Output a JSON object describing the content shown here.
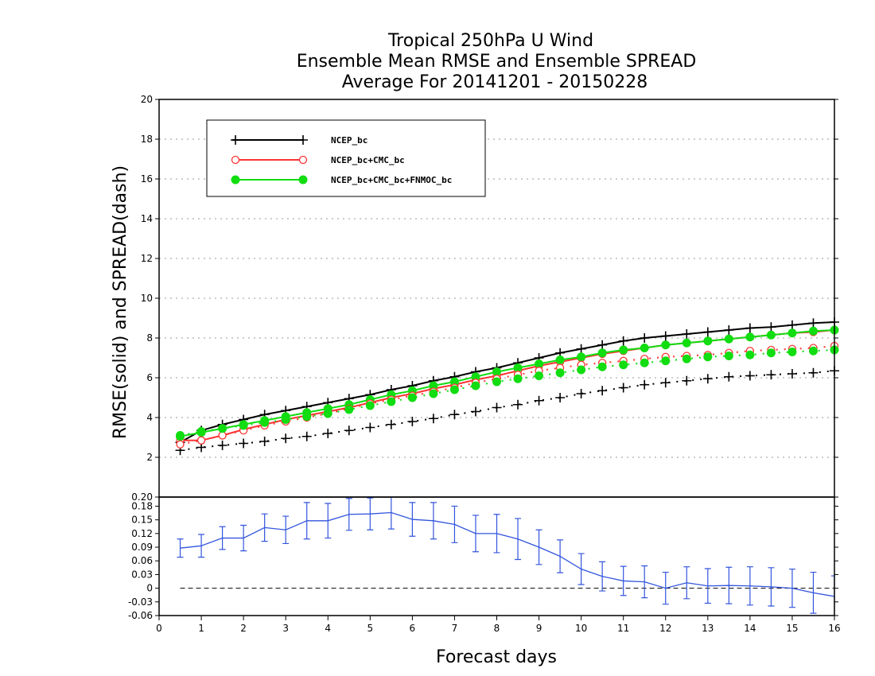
{
  "chart_data": [
    {
      "type": "line",
      "title": [
        "Tropical 250hPa U Wind",
        "Ensemble Mean RMSE and Ensemble SPREAD",
        "Average For 20141201 - 20150228"
      ],
      "ylabel": "RMSE(solid) and SPREAD(dash)",
      "xlim": [
        0,
        16
      ],
      "ylim": [
        0,
        20
      ],
      "yticks": [
        2,
        4,
        6,
        8,
        10,
        12,
        14,
        16,
        18,
        20
      ],
      "grid": true,
      "legend_position": "top-left",
      "x": [
        0.5,
        1,
        1.5,
        2,
        2.5,
        3,
        3.5,
        4,
        4.5,
        5,
        5.5,
        6,
        6.5,
        7,
        7.5,
        8,
        8.5,
        9,
        9.5,
        10,
        10.5,
        11,
        11.5,
        12,
        12.5,
        13,
        13.5,
        14,
        14.5,
        15,
        15.5,
        16
      ],
      "series": [
        {
          "name": "NCEP_bc",
          "style": "solid",
          "marker": "plus",
          "color": "#000000",
          "values": [
            2.75,
            3.35,
            3.65,
            3.9,
            4.15,
            4.35,
            4.55,
            4.75,
            4.95,
            5.15,
            5.4,
            5.6,
            5.85,
            6.05,
            6.3,
            6.5,
            6.75,
            7.0,
            7.25,
            7.45,
            7.65,
            7.85,
            8.0,
            8.1,
            8.2,
            8.3,
            8.4,
            8.5,
            8.55,
            8.65,
            8.75,
            8.8
          ]
        },
        {
          "name": "NCEP_bc+CMC_bc",
          "style": "solid",
          "marker": "open-circle",
          "color": "#ff3333",
          "values": [
            2.85,
            2.85,
            3.1,
            3.4,
            3.65,
            3.9,
            4.1,
            4.3,
            4.5,
            4.75,
            5.0,
            5.2,
            5.45,
            5.65,
            5.9,
            6.1,
            6.35,
            6.6,
            6.8,
            7.0,
            7.2,
            7.35,
            7.5,
            7.65,
            7.75,
            7.85,
            7.95,
            8.05,
            8.15,
            8.25,
            8.3,
            8.4
          ]
        },
        {
          "name": "NCEP_bc+CMC_bc+FNMOC_bc",
          "style": "solid",
          "marker": "filled-circle",
          "color": "#11dd11",
          "values": [
            3.05,
            3.25,
            3.45,
            3.65,
            3.85,
            4.05,
            4.25,
            4.45,
            4.65,
            4.9,
            5.15,
            5.35,
            5.6,
            5.8,
            6.05,
            6.3,
            6.5,
            6.7,
            6.9,
            7.05,
            7.25,
            7.4,
            7.5,
            7.65,
            7.75,
            7.85,
            7.95,
            8.05,
            8.15,
            8.25,
            8.35,
            8.4
          ]
        },
        {
          "name": "NCEP_bc",
          "style": "dash",
          "marker": "plus",
          "color": "#000000",
          "values": [
            2.35,
            2.5,
            2.6,
            2.7,
            2.8,
            2.95,
            3.05,
            3.2,
            3.35,
            3.5,
            3.65,
            3.8,
            3.95,
            4.15,
            4.3,
            4.5,
            4.65,
            4.85,
            5.0,
            5.2,
            5.35,
            5.5,
            5.65,
            5.75,
            5.85,
            5.95,
            6.05,
            6.1,
            6.15,
            6.2,
            6.25,
            6.35
          ]
        },
        {
          "name": "NCEP_bc+CMC_bc",
          "style": "dash",
          "marker": "open-circle",
          "color": "#ff3333",
          "values": [
            2.65,
            2.85,
            3.1,
            3.35,
            3.6,
            3.8,
            4.0,
            4.2,
            4.45,
            4.7,
            4.9,
            5.1,
            5.3,
            5.5,
            5.75,
            5.95,
            6.15,
            6.35,
            6.5,
            6.65,
            6.75,
            6.85,
            6.95,
            7.05,
            7.1,
            7.15,
            7.25,
            7.35,
            7.4,
            7.45,
            7.5,
            7.6
          ]
        },
        {
          "name": "NCEP_bc+CMC_bc+FNMOC_bc",
          "style": "dash",
          "marker": "filled-circle",
          "color": "#11dd11",
          "values": [
            3.1,
            3.3,
            3.45,
            3.6,
            3.75,
            3.9,
            4.05,
            4.2,
            4.4,
            4.6,
            4.8,
            5.0,
            5.2,
            5.4,
            5.6,
            5.8,
            5.95,
            6.1,
            6.25,
            6.4,
            6.55,
            6.65,
            6.75,
            6.85,
            6.95,
            7.05,
            7.1,
            7.15,
            7.25,
            7.3,
            7.35,
            7.4
          ]
        }
      ]
    },
    {
      "type": "line",
      "xlabel": "Forecast days",
      "xlim": [
        0,
        16
      ],
      "xticks": [
        0,
        1,
        2,
        3,
        4,
        5,
        6,
        7,
        8,
        9,
        10,
        11,
        12,
        13,
        14,
        15,
        16
      ],
      "ylim": [
        -0.06,
        0.2
      ],
      "yticks": [
        -0.06,
        -0.03,
        0,
        0.03,
        0.06,
        0.09,
        0.12,
        0.15,
        0.18,
        0.2
      ],
      "ytick_labels": [
        "-0.06",
        "-0.03",
        "0",
        "0.03",
        "0.06",
        "0.09",
        "0.12",
        "0.15",
        "0.18",
        "0.20"
      ],
      "zero_line": "dash",
      "x": [
        0.5,
        1,
        1.5,
        2,
        2.5,
        3,
        3.5,
        4,
        4.5,
        5,
        5.5,
        6,
        6.5,
        7,
        7.5,
        8,
        8.5,
        9,
        9.5,
        10,
        10.5,
        11,
        11.5,
        12,
        12.5,
        13,
        13.5,
        14,
        14.5,
        15,
        15.5,
        16
      ],
      "series": [
        {
          "style": "solid",
          "color": "#3355dd",
          "values": [
            0.088,
            0.093,
            0.11,
            0.11,
            0.133,
            0.128,
            0.148,
            0.148,
            0.162,
            0.163,
            0.166,
            0.151,
            0.148,
            0.14,
            0.12,
            0.12,
            0.108,
            0.09,
            0.07,
            0.042,
            0.026,
            0.016,
            0.014,
            0.0,
            0.012,
            0.005,
            0.006,
            0.005,
            0.003,
            0.0,
            -0.01,
            -0.018
          ],
          "error": [
            0.02,
            0.025,
            0.025,
            0.028,
            0.03,
            0.03,
            0.04,
            0.038,
            0.035,
            0.035,
            0.036,
            0.037,
            0.04,
            0.04,
            0.04,
            0.042,
            0.045,
            0.038,
            0.036,
            0.034,
            0.032,
            0.032,
            0.035,
            0.035,
            0.035,
            0.038,
            0.04,
            0.042,
            0.042,
            0.042,
            0.045,
            0.045
          ]
        }
      ]
    }
  ]
}
